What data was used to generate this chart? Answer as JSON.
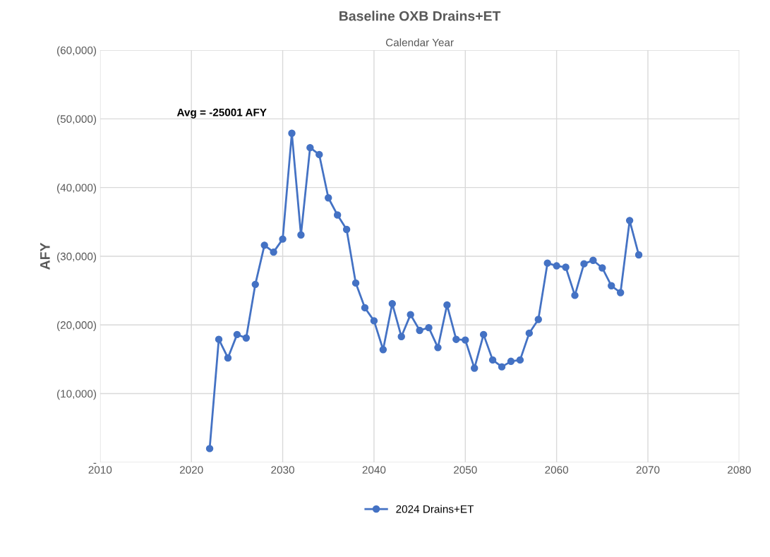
{
  "chart_data": {
    "type": "line",
    "title": "Baseline OXB Drains+ET",
    "xlabel": "Calendar Year",
    "ylabel": "AFY",
    "annotations": [
      "Avg = -25001 AFY"
    ],
    "x": [
      2022,
      2023,
      2024,
      2025,
      2026,
      2027,
      2028,
      2029,
      2030,
      2031,
      2032,
      2033,
      2034,
      2035,
      2036,
      2037,
      2038,
      2039,
      2040,
      2041,
      2042,
      2043,
      2044,
      2045,
      2046,
      2047,
      2048,
      2049,
      2050,
      2051,
      2052,
      2053,
      2054,
      2055,
      2056,
      2057,
      2058,
      2059,
      2060,
      2061,
      2062,
      2063,
      2064,
      2065,
      2066,
      2067,
      2068,
      2069
    ],
    "series": [
      {
        "name": "2024 Drains+ET",
        "color": "#4472c4",
        "values": [
          -2000,
          -17900,
          -15200,
          -18600,
          -18100,
          -25900,
          -31600,
          -30600,
          -32500,
          -47900,
          -33100,
          -45800,
          -44800,
          -38500,
          -36000,
          -33900,
          -26100,
          -22500,
          -20600,
          -16400,
          -23100,
          -18300,
          -21500,
          -19200,
          -19600,
          -16700,
          -22900,
          -17900,
          -17800,
          -13700,
          -18600,
          -14900,
          -13900,
          -14700,
          -14900,
          -18800,
          -20800,
          -29000,
          -28600,
          -28400,
          -24300,
          -28900,
          -29400,
          -28300,
          -25700,
          -24700,
          -35200,
          -30200
        ]
      }
    ],
    "xlim": [
      2010,
      2080
    ],
    "xticks": [
      2010,
      2020,
      2030,
      2040,
      2050,
      2060,
      2070,
      2080
    ],
    "ylim": [
      0,
      -60000
    ],
    "yticks": [
      {
        "value": -60000,
        "label": "(60,000)"
      },
      {
        "value": -50000,
        "label": "(50,000)"
      },
      {
        "value": -40000,
        "label": "(40,000)"
      },
      {
        "value": -30000,
        "label": "(30,000)"
      },
      {
        "value": -20000,
        "label": "(20,000)"
      },
      {
        "value": -10000,
        "label": "(10,000)"
      },
      {
        "value": 0,
        "label": "-"
      }
    ],
    "grid": true,
    "legend": "bottom",
    "marker": "circle",
    "line_style": "solid"
  }
}
